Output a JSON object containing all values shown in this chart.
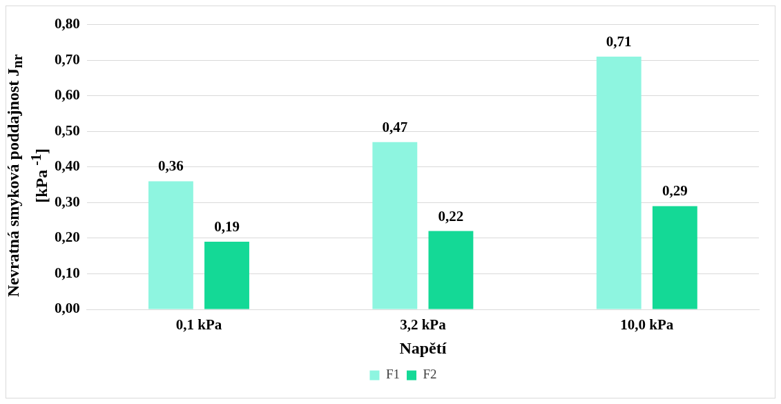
{
  "chart_data": {
    "type": "bar",
    "xlabel": "Napětí",
    "ylabel": "Nevratná smyková poddajnost J$_{nr}$ [kPa $^{-1}$]",
    "categories": [
      "0,1 kPa",
      "3,2 kPa",
      "10,0 kPa"
    ],
    "series": [
      {
        "name": "F1",
        "color": "#8ef5e0",
        "values": [
          0.36,
          0.47,
          0.71
        ],
        "value_labels": [
          "0,36",
          "0,47",
          "0,71"
        ]
      },
      {
        "name": "F2",
        "color": "#14d996",
        "values": [
          0.19,
          0.22,
          0.29
        ],
        "value_labels": [
          "0,19",
          "0,22",
          "0,29"
        ]
      }
    ],
    "ylim": [
      0,
      0.8
    ],
    "yticks": [
      {
        "value": 0,
        "label": "0,00"
      },
      {
        "value": 0.1,
        "label": "0,10"
      },
      {
        "value": 0.2,
        "label": "0,20"
      },
      {
        "value": 0.3,
        "label": "0,30"
      },
      {
        "value": 0.4,
        "label": "0,40"
      },
      {
        "value": 0.5,
        "label": "0,50"
      },
      {
        "value": 0.6,
        "label": "0,60"
      },
      {
        "value": 0.7,
        "label": "0,70"
      },
      {
        "value": 0.8,
        "label": "0,80"
      }
    ],
    "grid": "y",
    "legend": "bottom"
  }
}
